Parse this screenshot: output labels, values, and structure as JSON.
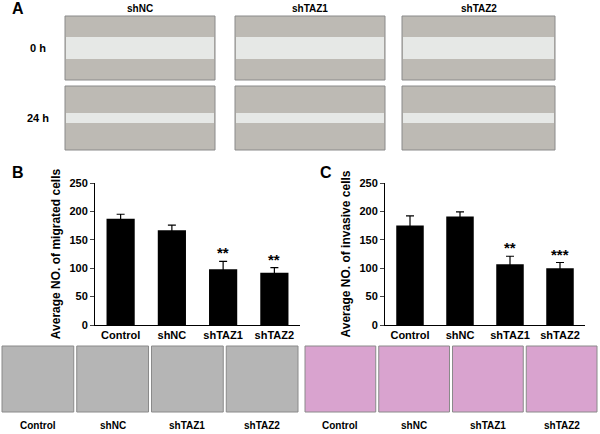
{
  "chart_data": [
    {
      "type": "bar",
      "y_label": "Average NO. of migrated cells",
      "categories": [
        "Control",
        "shNC",
        "shTAZ1",
        "shTAZ2"
      ],
      "values": [
        187,
        167,
        98,
        92
      ],
      "errors": [
        8,
        9,
        14,
        9
      ],
      "color": "#000000",
      "ylim": [
        0,
        250
      ],
      "yticks": [
        0,
        50,
        100,
        150,
        200,
        250
      ],
      "grid": false,
      "annotations": [
        {
          "x": "shTAZ1",
          "text": "**"
        },
        {
          "x": "shTAZ2",
          "text": "**"
        }
      ]
    },
    {
      "type": "bar",
      "y_label": "Average NO. of invasive cells",
      "categories": [
        "Control",
        "shNC",
        "shTAZ1",
        "shTAZ2"
      ],
      "values": [
        175,
        191,
        107,
        100
      ],
      "errors": [
        17,
        8,
        14,
        10
      ],
      "color": "#000000",
      "ylim": [
        0,
        250
      ],
      "yticks": [
        0,
        50,
        100,
        150,
        200,
        250
      ],
      "grid": false,
      "annotations": [
        {
          "x": "shTAZ1",
          "text": "**"
        },
        {
          "x": "shTAZ2",
          "text": "***"
        }
      ]
    }
  ],
  "figure": {
    "panel_labels": [
      "A",
      "B",
      "C"
    ],
    "panel_a": {
      "columns": [
        "shNC",
        "shTAZ1",
        "shTAZ2"
      ],
      "rows": [
        "0 h",
        "24 h"
      ]
    },
    "panel_b_images": [
      "Control",
      "shNC",
      "shTAZ1",
      "shTAZ2"
    ],
    "panel_c_images": [
      "Control",
      "shNC",
      "shTAZ1",
      "shTAZ2"
    ]
  }
}
